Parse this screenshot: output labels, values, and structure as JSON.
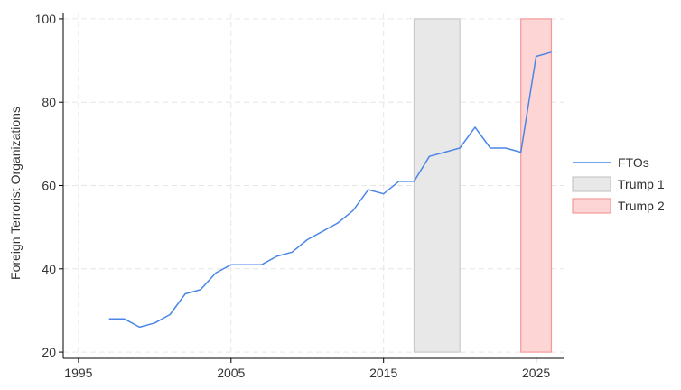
{
  "chart_data": {
    "type": "line",
    "title": "",
    "xlabel": "",
    "ylabel": "Foreign Terrorist Organizations",
    "xlim": [
      1994,
      2026.8
    ],
    "ylim": [
      18.5,
      101.5
    ],
    "x_ticks": [
      1995,
      2005,
      2015,
      2025
    ],
    "y_ticks": [
      20,
      40,
      60,
      80,
      100
    ],
    "grid": true,
    "legend_position": "right",
    "series": [
      {
        "name": "FTOs",
        "color": "#4a86e8",
        "x": [
          1997,
          1998,
          1999,
          2000,
          2001,
          2002,
          2003,
          2004,
          2005,
          2006,
          2007,
          2008,
          2009,
          2010,
          2011,
          2012,
          2013,
          2014,
          2015,
          2016,
          2017,
          2018,
          2019,
          2020,
          2021,
          2022,
          2023,
          2024,
          2025,
          2026
        ],
        "values": [
          28,
          28,
          26,
          27,
          29,
          34,
          35,
          39,
          41,
          41,
          41,
          43,
          44,
          47,
          49,
          51,
          54,
          59,
          58,
          61,
          61,
          67,
          68,
          69,
          74,
          69,
          69,
          68,
          91,
          92
        ]
      }
    ],
    "shaded_regions": [
      {
        "name": "Trump 1",
        "x_start": 2017,
        "x_end": 2020,
        "y_start": 20,
        "y_end": 100,
        "fill": "#e8e8e8",
        "stroke": "#c8c8c8"
      },
      {
        "name": "Trump 2",
        "x_start": 2024,
        "x_end": 2026,
        "y_start": 20,
        "y_end": 100,
        "fill": "#fdd5d5",
        "stroke": "#f29a9a"
      }
    ]
  }
}
